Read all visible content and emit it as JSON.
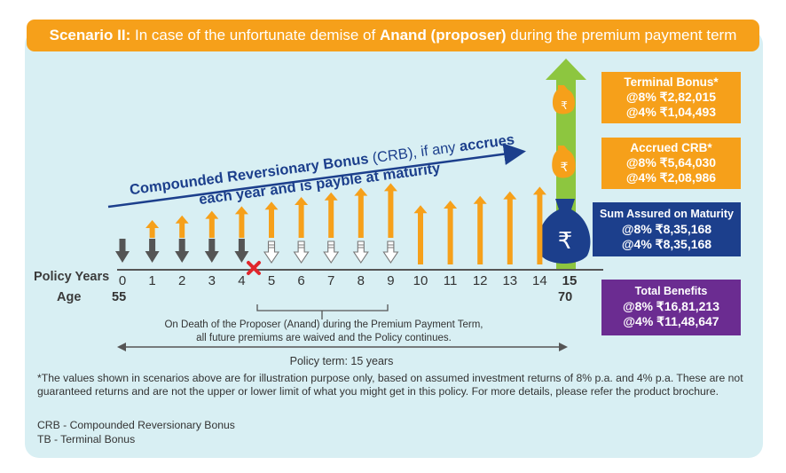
{
  "title": {
    "prefix": "Scenario II:",
    "text1": " In case of the unfortunate demise of ",
    "highlight": "Anand (proposer)",
    "text2": " during the premium payment term"
  },
  "crb_label": {
    "line1a": "Compounded Reversionary Bonus",
    "line1b": " (CRB), if any ",
    "line1c": "accrues",
    "line2": "each year and is payble at maturity"
  },
  "axis": {
    "policy_years_label": "Policy Years",
    "age_label": "Age",
    "years": [
      "0",
      "1",
      "2",
      "3",
      "4",
      "5",
      "6",
      "7",
      "8",
      "9",
      "10",
      "11",
      "12",
      "13",
      "14",
      "15"
    ],
    "age_start": "55",
    "age_end": "70"
  },
  "arrows": {
    "premium_paid_years": [
      0,
      1,
      2,
      3,
      4
    ],
    "premium_waived_years": [
      5,
      6,
      7,
      8,
      9
    ],
    "bonus_years": [
      1,
      2,
      3,
      4,
      5,
      6,
      7,
      8,
      9,
      10,
      11,
      12,
      13,
      14
    ],
    "death_year": 4,
    "maturity_year": 15
  },
  "death_note": {
    "line1": "On Death of the Proposer (Anand) during the Premium Payment Term,",
    "line2": "all future premiums are waived and the Policy continues."
  },
  "policy_term": "Policy term: 15 years",
  "boxes": {
    "terminal_bonus": {
      "title": "Terminal Bonus*",
      "line1": "@8% ₹2,82,015",
      "line2": "@4% ₹1,04,493"
    },
    "accrued_crb": {
      "title": "Accrued CRB*",
      "line1": "@8% ₹5,64,030",
      "line2": "@4% ₹2,08,986"
    },
    "sum_assured": {
      "title": "Sum Assured on Maturity",
      "line1": "@8% ₹8,35,168",
      "line2": "@4% ₹8,35,168"
    },
    "total_benefits": {
      "title": "Total Benefits",
      "line1": "@8% ₹16,81,213",
      "line2": "@4% ₹11,48,647"
    }
  },
  "rupee_symbol": "₹",
  "disclaimer": "*The values shown in scenarios above are for illustration purpose only, based on assumed investment returns of 8% p.a. and 4% p.a. These are not guaranteed returns and are not the upper or lower limit of what you might get in this policy. For more details, please refer the product brochure.",
  "abbreviations": [
    "CRB - Compounded Reversionary Bonus",
    "TB - Terminal Bonus"
  ],
  "colors": {
    "orange": "#f6a01a",
    "green": "#8dc63f",
    "navy": "#1c3f8c",
    "purple": "#6b2c91",
    "red": "#e0262b",
    "dark_arrow": "#555555",
    "panel": "#d8eff3"
  }
}
